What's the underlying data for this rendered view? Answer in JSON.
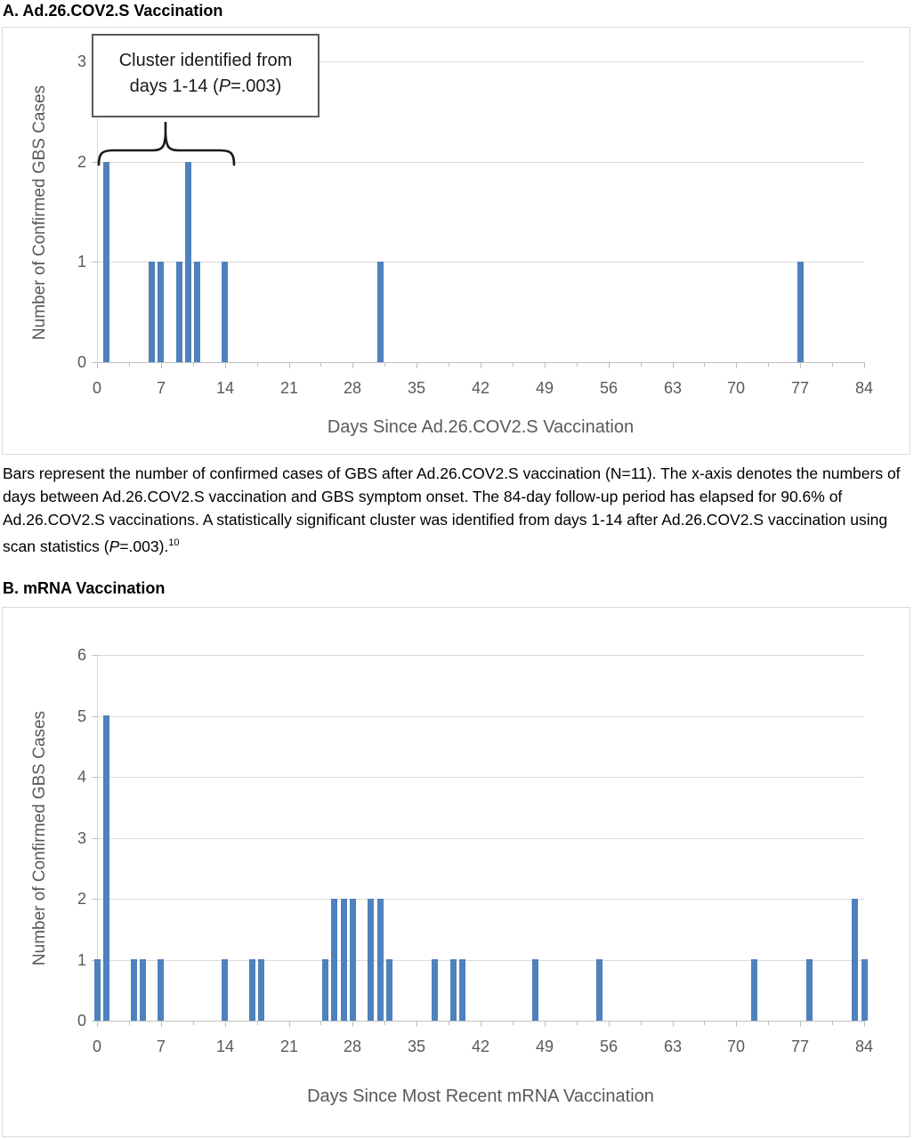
{
  "colors": {
    "bar_blue": "#4f81bd",
    "gridline_gray": "#d9d9d9",
    "axis_gray": "#bfbfbf",
    "axis_text_gray": "#595959"
  },
  "caption": {
    "text_before_italic": "Bars represent the number of confirmed cases of GBS after Ad.26.COV2.S vaccination (N=11). The x-axis denotes the numbers of days between Ad.26.COV2.S vaccination and GBS symptom onset. The 84-day follow-up period has elapsed for 90.6% of Ad.26.COV2.S vaccinations. A statistically significant cluster was identified from days 1-14 after Ad.26.COV2.S vaccination using scan statistics (",
    "italic_p": "P",
    "text_after_italic": "=.003).",
    "superscript_ref": "10"
  },
  "chart_data": [
    {
      "type": "bar",
      "panel": "A",
      "title": "A. Ad.26.COV2.S Vaccination",
      "xlabel": "Days Since Ad.26.COV2.S Vaccination",
      "ylabel": "Number of Confirmed GBS Cases",
      "xlim": [
        0,
        84
      ],
      "ylim": [
        0,
        3
      ],
      "x_ticks": [
        0,
        7,
        14,
        21,
        28,
        35,
        42,
        49,
        56,
        63,
        70,
        77,
        84
      ],
      "y_ticks": [
        0,
        1,
        2,
        3
      ],
      "x": [
        1,
        6,
        7,
        9,
        10,
        11,
        14,
        31,
        77
      ],
      "values": [
        2,
        1,
        1,
        1,
        2,
        1,
        1,
        1,
        1
      ],
      "n_total": 11,
      "grid": "horizontal",
      "legend": "none",
      "annotation": {
        "line1": "Cluster identified from",
        "line2_pre": "days 1-14 (",
        "line2_italic": "P",
        "line2_post": "=.003)",
        "cluster_days_span": [
          1,
          14
        ]
      }
    },
    {
      "type": "bar",
      "panel": "B",
      "title": "B. mRNA Vaccination",
      "xlabel": "Days Since Most Recent mRNA Vaccination",
      "ylabel": "Number of Confirmed GBS Cases",
      "xlim": [
        0,
        84
      ],
      "ylim": [
        0,
        6
      ],
      "x_ticks": [
        0,
        7,
        14,
        21,
        28,
        35,
        42,
        49,
        56,
        63,
        70,
        77,
        84
      ],
      "y_ticks": [
        0,
        1,
        2,
        3,
        4,
        5,
        6
      ],
      "x": [
        0,
        1,
        4,
        5,
        7,
        14,
        17,
        18,
        25,
        26,
        27,
        28,
        30,
        31,
        32,
        37,
        39,
        40,
        48,
        55,
        72,
        78,
        83,
        84
      ],
      "values": [
        1,
        5,
        1,
        1,
        1,
        1,
        1,
        1,
        1,
        2,
        2,
        2,
        2,
        2,
        1,
        1,
        1,
        1,
        1,
        1,
        1,
        1,
        2,
        1
      ],
      "grid": "horizontal",
      "legend": "none"
    }
  ]
}
